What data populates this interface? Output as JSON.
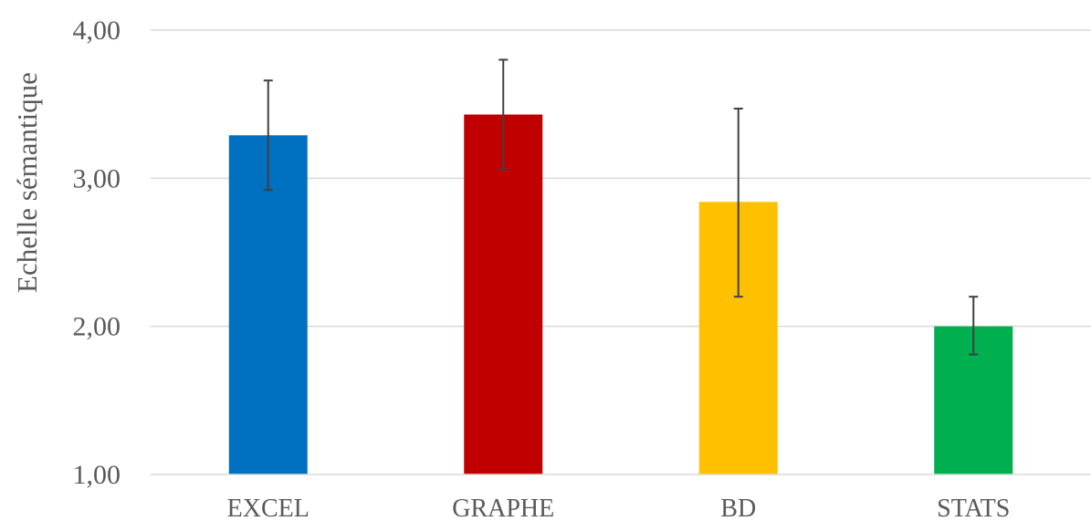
{
  "chart_data": {
    "type": "bar",
    "title": "",
    "xlabel": "",
    "ylabel": "Echelle sémantique",
    "ylim": [
      1,
      4
    ],
    "yticks": [
      "1,00",
      "2,00",
      "3,00",
      "4,00"
    ],
    "ytick_values": [
      1,
      2,
      3,
      4
    ],
    "grid": true,
    "legend": "none",
    "categories": [
      "EXCEL",
      "GRAPHE",
      "BD",
      "STATS"
    ],
    "values": [
      3.29,
      3.43,
      2.84,
      2.0
    ],
    "error_low": [
      2.92,
      3.06,
      2.2,
      1.81
    ],
    "error_high": [
      3.66,
      3.8,
      3.47,
      2.2
    ],
    "colors": [
      "#0070c0",
      "#c00000",
      "#ffc000",
      "#00b050"
    ]
  }
}
